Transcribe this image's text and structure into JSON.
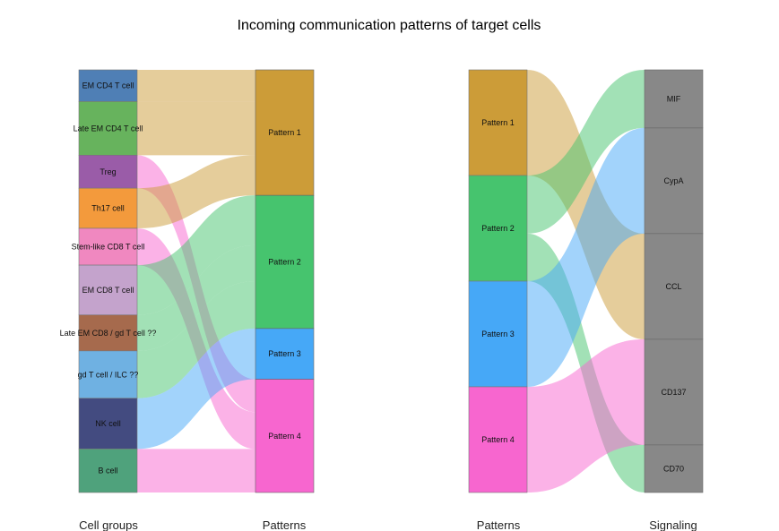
{
  "chart_data": {
    "type": "sankey",
    "title": "Incoming communication patterns of target cells",
    "panels": [
      {
        "left_axis_label": "Cell groups",
        "right_axis_label": "Patterns",
        "left_nodes": [
          {
            "name": "EM CD4 T cell",
            "color": "#4f7fb5",
            "size": 0.075
          },
          {
            "name": "Late EM CD4 T cell",
            "color": "#67b35d",
            "size": 0.127
          },
          {
            "name": "Treg",
            "color": "#9a5ca8",
            "size": 0.078
          },
          {
            "name": "Th17 cell",
            "color": "#f39a3c",
            "size": 0.095
          },
          {
            "name": "Stem-like CD8 T cell",
            "color": "#f088c0",
            "size": 0.087
          },
          {
            "name": "EM CD8 T cell",
            "color": "#c4a3cc",
            "size": 0.118
          },
          {
            "name": "Late EM CD8 / gd T cell ??",
            "color": "#a66a4d",
            "size": 0.085
          },
          {
            "name": "gd T cell / ILC ??",
            "color": "#6fb1e2",
            "size": 0.112
          },
          {
            "name": "NK cell",
            "color": "#434b80",
            "size": 0.12
          },
          {
            "name": "B cell",
            "color": "#4fa27c",
            "size": 0.103
          }
        ],
        "right_nodes": [
          {
            "name": "Pattern 1",
            "color": "#cc9c38"
          },
          {
            "name": "Pattern 2",
            "color": "#46c46e"
          },
          {
            "name": "Pattern 3",
            "color": "#46a8f7"
          },
          {
            "name": "Pattern 4",
            "color": "#f766cf"
          }
        ],
        "flows": [
          {
            "source": "EM CD4 T cell",
            "target": "Pattern 1"
          },
          {
            "source": "Late EM CD4 T cell",
            "target": "Pattern 1"
          },
          {
            "source": "Treg",
            "target": "Pattern 4"
          },
          {
            "source": "Th17 cell",
            "target": "Pattern 1"
          },
          {
            "source": "Stem-like CD8 T cell",
            "target": "Pattern 4"
          },
          {
            "source": "EM CD8 T cell",
            "target": "Pattern 2"
          },
          {
            "source": "Late EM CD8 / gd T cell ??",
            "target": "Pattern 2"
          },
          {
            "source": "gd T cell / ILC ??",
            "target": "Pattern 2"
          },
          {
            "source": "NK cell",
            "target": "Pattern 3"
          },
          {
            "source": "B cell",
            "target": "Pattern 4"
          }
        ]
      },
      {
        "left_axis_label": "Patterns",
        "right_axis_label": "Signaling",
        "left_nodes": [
          {
            "name": "Pattern 1",
            "color": "#cc9c38"
          },
          {
            "name": "Pattern 2",
            "color": "#46c46e"
          },
          {
            "name": "Pattern 3",
            "color": "#46a8f7"
          },
          {
            "name": "Pattern 4",
            "color": "#f766cf"
          }
        ],
        "right_nodes": [
          {
            "name": "MIF",
            "color": "#888888"
          },
          {
            "name": "CypA",
            "color": "#888888"
          },
          {
            "name": "CCL",
            "color": "#888888"
          },
          {
            "name": "CD137",
            "color": "#888888"
          },
          {
            "name": "CD70",
            "color": "#888888"
          }
        ],
        "flows": [
          {
            "source": "Pattern 1",
            "target": "CCL",
            "value": 1
          },
          {
            "source": "Pattern 2",
            "target": "MIF",
            "value": 0.55
          },
          {
            "source": "Pattern 2",
            "target": "CD70",
            "value": 0.45
          },
          {
            "source": "Pattern 3",
            "target": "CypA",
            "value": 1
          },
          {
            "source": "Pattern 4",
            "target": "CD137",
            "value": 1
          }
        ]
      }
    ]
  }
}
